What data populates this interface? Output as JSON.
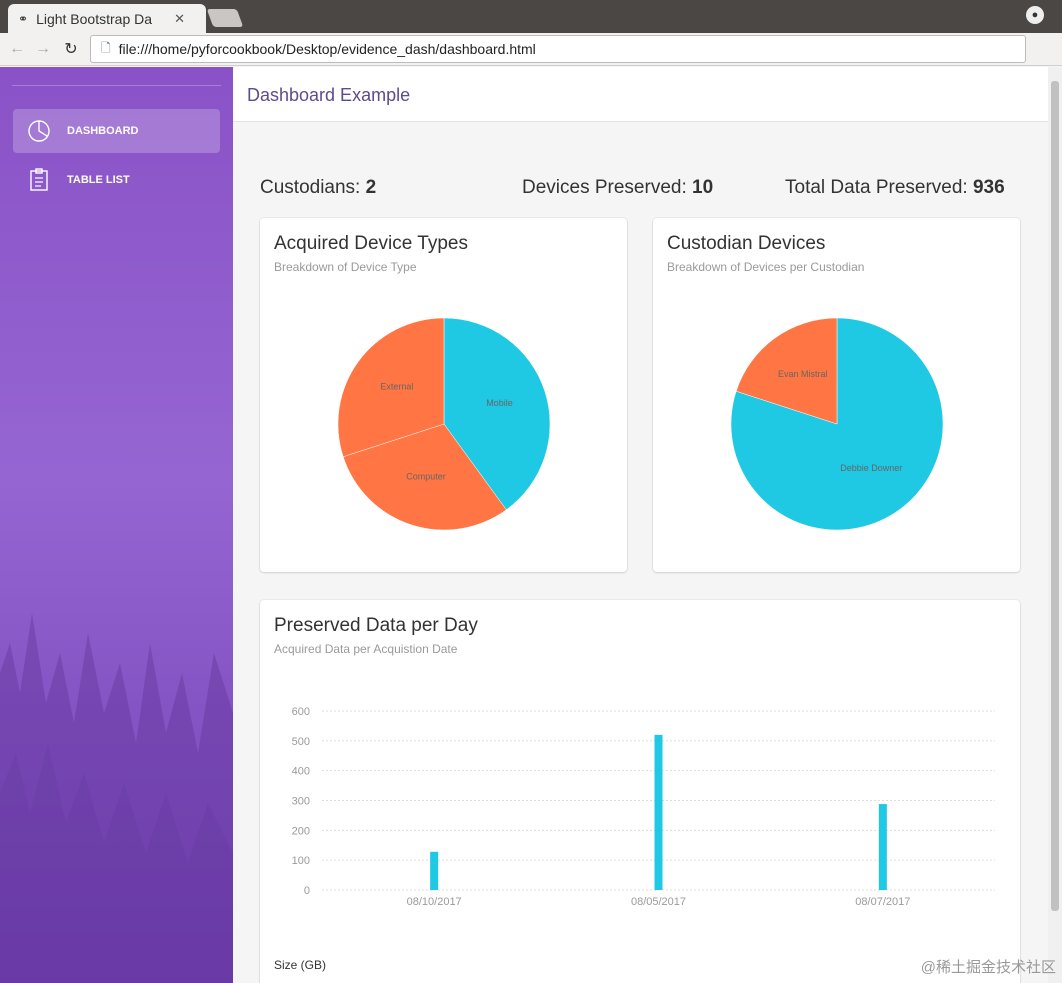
{
  "browser": {
    "tab_title": "Light Bootstrap Da",
    "url": "file:///home/pyforcookbook/Desktop/evidence_dash/dashboard.html"
  },
  "sidebar": {
    "items": [
      {
        "label": "DASHBOARD",
        "icon": "pie-chart-icon",
        "active": true
      },
      {
        "label": "TABLE LIST",
        "icon": "clipboard-icon",
        "active": false
      }
    ]
  },
  "header": {
    "brand": "Dashboard Example"
  },
  "stats": [
    {
      "label": "Custodians:",
      "value": "2"
    },
    {
      "label": "Devices Preserved:",
      "value": "10"
    },
    {
      "label": "Total Data Preserved:",
      "value": "936"
    }
  ],
  "cards": {
    "device_types": {
      "title": "Acquired Device Types",
      "subtitle": "Breakdown of Device Type"
    },
    "custodian_devices": {
      "title": "Custodian Devices",
      "subtitle": "Breakdown of Devices per Custodian"
    },
    "preserved_data": {
      "title": "Preserved Data per Day",
      "subtitle": "Acquired Data per Acquistion Date",
      "legend": "Size (GB)"
    }
  },
  "chart_data": [
    {
      "type": "pie",
      "labels": [
        "Mobile",
        "Computer",
        "External"
      ],
      "values": [
        4,
        3,
        3
      ],
      "colors": [
        "#1fc8e3",
        "#ff7543",
        "#ff7543"
      ]
    },
    {
      "type": "pie",
      "labels": [
        "Debbie Downer",
        "Evan Mistral"
      ],
      "values": [
        8,
        2
      ],
      "colors": [
        "#1fc8e3",
        "#ff7543"
      ]
    },
    {
      "type": "bar",
      "categories": [
        "08/10/2017",
        "08/05/2017",
        "08/07/2017"
      ],
      "values": [
        128,
        520,
        288
      ],
      "ylim": [
        0,
        600
      ],
      "yticks": [
        0,
        100,
        200,
        300,
        400,
        500,
        600
      ],
      "color": "#1fc8e3",
      "series": [
        {
          "name": "Size (GB)",
          "values": [
            128,
            520,
            288
          ]
        }
      ]
    }
  ],
  "watermark": "@稀土掘金技术社区"
}
